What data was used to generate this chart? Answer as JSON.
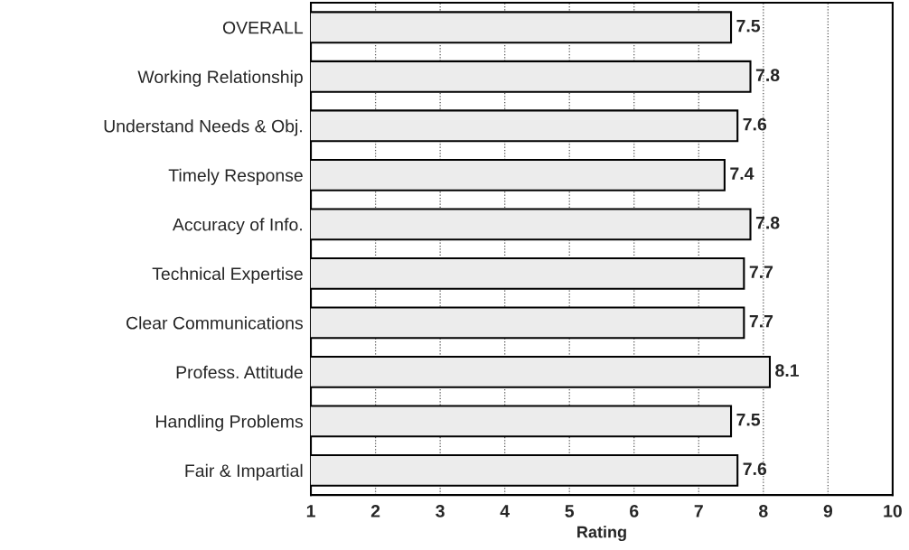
{
  "chart_data": {
    "type": "bar",
    "orientation": "horizontal",
    "xlabel": "Rating",
    "categories": [
      "OVERALL",
      "Working Relationship",
      "Understand Needs & Obj.",
      "Timely Response",
      "Accuracy of Info.",
      "Technical Expertise",
      "Clear Communications",
      "Profess. Attitude",
      "Handling Problems",
      "Fair & Impartial"
    ],
    "values": [
      7.5,
      7.8,
      7.6,
      7.4,
      7.8,
      7.7,
      7.7,
      8.1,
      7.5,
      7.6
    ],
    "color": "#ececec",
    "data_labels": true,
    "xlim": [
      1,
      10
    ],
    "xticks": [
      1,
      2,
      3,
      4,
      5,
      6,
      7,
      8,
      9,
      10
    ],
    "grid": "x",
    "line_style": "dotted"
  }
}
